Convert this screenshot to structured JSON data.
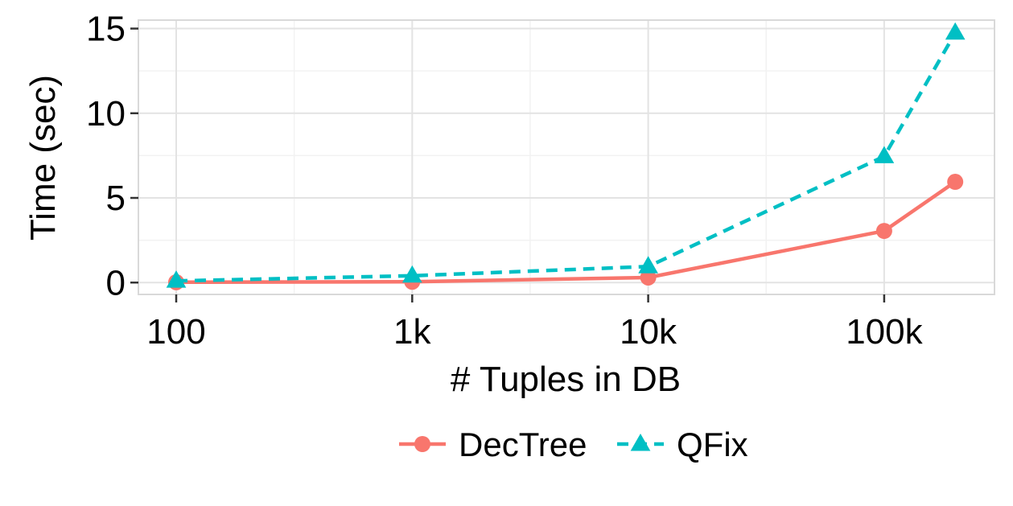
{
  "chart_data": {
    "type": "line",
    "title": "",
    "xlabel": "# Tuples in DB",
    "ylabel": "Time (sec)",
    "x_scale": "log",
    "x_ticks": [
      {
        "value": 100,
        "label": "100"
      },
      {
        "value": 1000,
        "label": "1k"
      },
      {
        "value": 10000,
        "label": "10k"
      },
      {
        "value": 100000,
        "label": "100k"
      }
    ],
    "y_ticks": [
      {
        "value": 0,
        "label": "0"
      },
      {
        "value": 5,
        "label": "5"
      },
      {
        "value": 10,
        "label": "10"
      },
      {
        "value": 15,
        "label": "15"
      }
    ],
    "ylim": [
      -0.7,
      15.5
    ],
    "grid": true,
    "legend_position": "bottom",
    "series": [
      {
        "name": "DecTree",
        "color": "#F8766D",
        "line_style": "solid",
        "marker": "circle",
        "x": [
          100,
          1000,
          10000,
          100000,
          200000
        ],
        "y": [
          0.02,
          0.05,
          0.3,
          3.05,
          5.95
        ]
      },
      {
        "name": "QFix",
        "color": "#00BFC4",
        "line_style": "dashed",
        "marker": "triangle",
        "x": [
          100,
          1000,
          10000,
          100000,
          200000
        ],
        "y": [
          0.1,
          0.4,
          0.95,
          7.45,
          14.75
        ]
      }
    ]
  }
}
